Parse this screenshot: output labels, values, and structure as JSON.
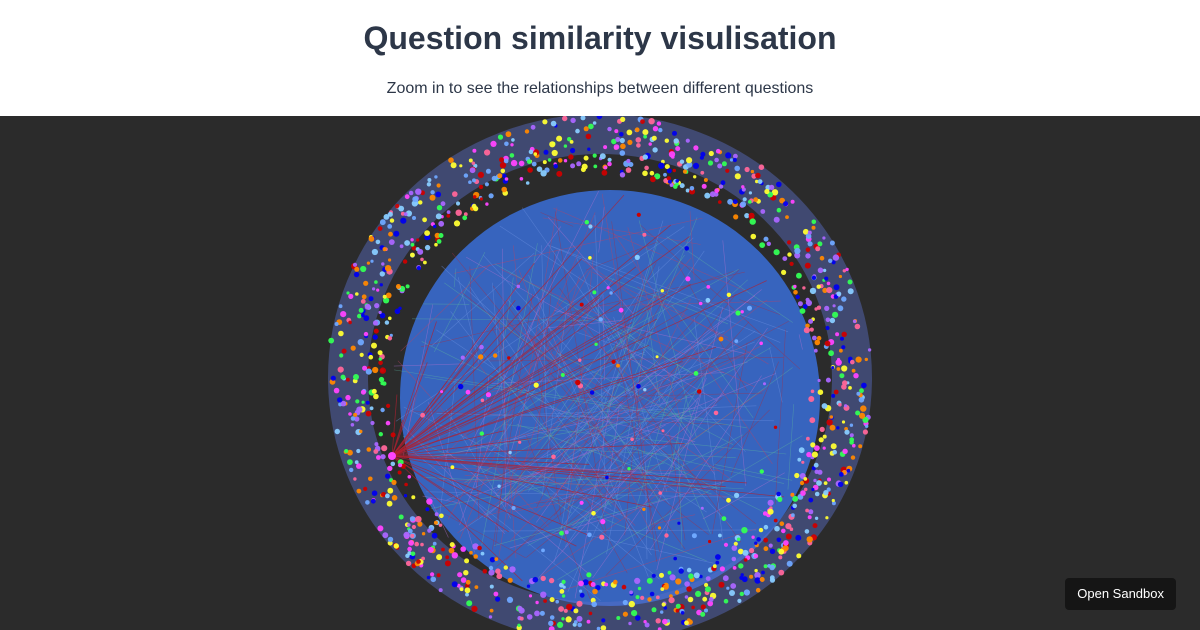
{
  "header": {
    "title": "Question similarity visulisation",
    "subtitle": "Zoom in to see the relationships between different questions"
  },
  "sandbox": {
    "label": "Open Sandbox"
  },
  "graph": {
    "background": "#2b2b2b",
    "inner_fill": "#3a6fd8",
    "node_colors": [
      "#6fa8ff",
      "#ff44ff",
      "#ffff33",
      "#33ff55",
      "#cc0000",
      "#ff8800",
      "#aa66ff",
      "#ff6699",
      "#0000ee",
      "#88ccff"
    ],
    "edge_colors": [
      "#a0304a",
      "#c04060",
      "#6a8fe0",
      "#5ab0a0",
      "#b070d0"
    ]
  }
}
